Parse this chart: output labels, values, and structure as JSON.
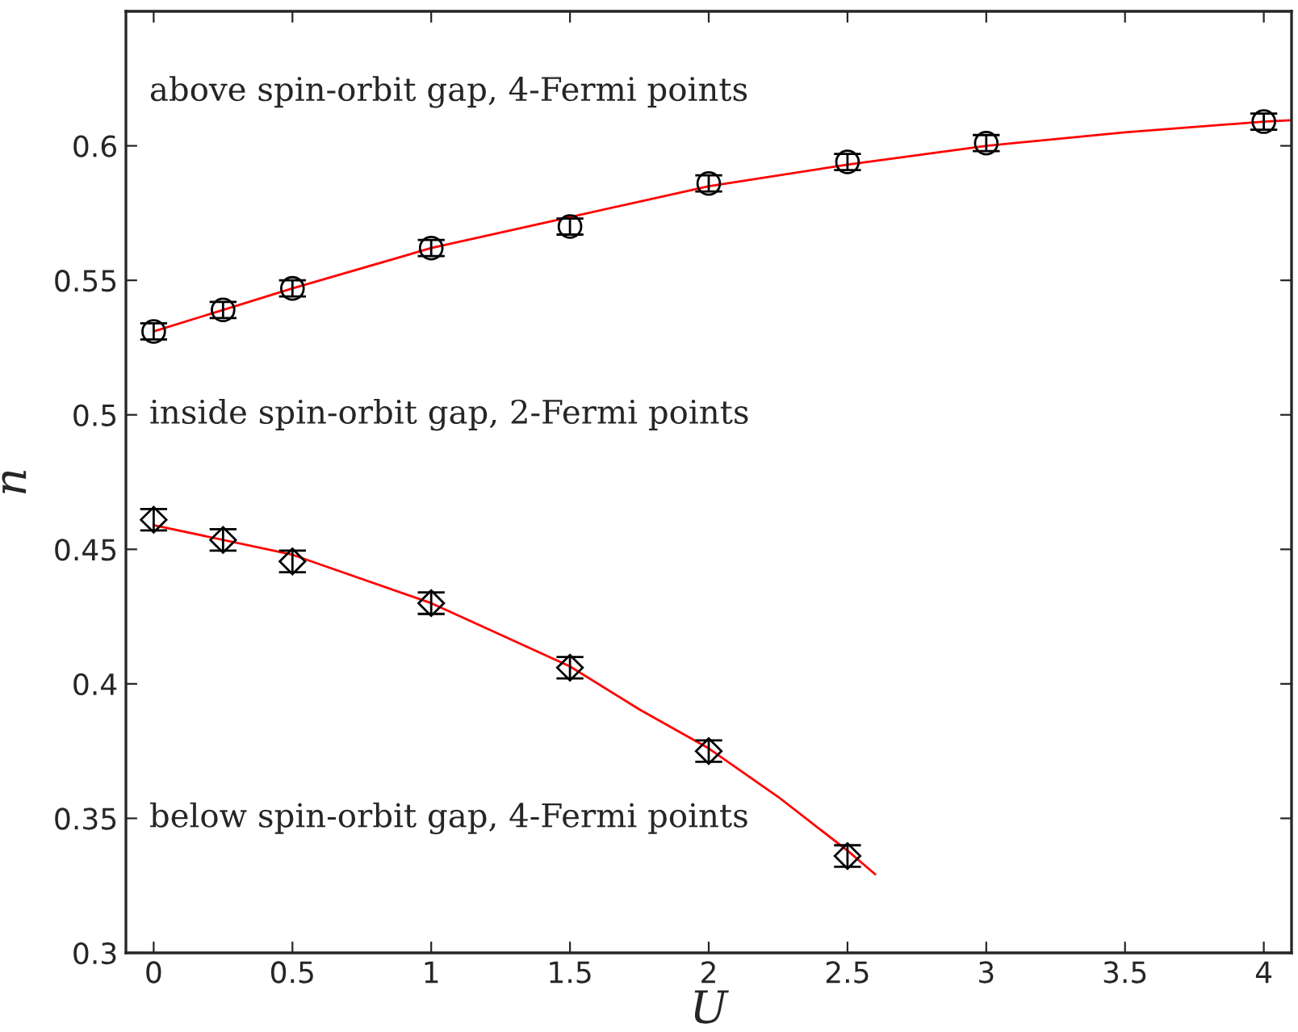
{
  "chart_data": {
    "type": "scatter",
    "xlabel": "U",
    "ylabel": "n",
    "xlim": [
      -0.1,
      4.1
    ],
    "xticks": [
      0,
      0.5,
      1,
      1.5,
      2,
      2.5,
      3,
      3.5,
      4
    ],
    "ylim": [
      0.3,
      0.65
    ],
    "yticks": [
      0.3,
      0.35,
      0.4,
      0.45,
      0.5,
      0.55,
      0.6
    ],
    "grid": false,
    "legend": false,
    "annotations": [
      "above spin-orbit gap, 4-Fermi points",
      "inside spin-orbit gap, 2-Fermi points",
      "below spin-orbit gap, 4-Fermi points"
    ],
    "series": [
      {
        "marker": "circle",
        "color": "#000000",
        "x": [
          0,
          0.25,
          0.5,
          1,
          1.5,
          2,
          2.5,
          3,
          4
        ],
        "values": [
          0.531,
          0.539,
          0.547,
          0.562,
          0.57,
          0.586,
          0.594,
          0.601,
          0.609
        ],
        "errors": [
          0.003,
          0.003,
          0.003,
          0.003,
          0.003,
          0.003,
          0.003,
          0.003,
          0.003
        ]
      },
      {
        "marker": "diamond",
        "color": "#000000",
        "x": [
          0,
          0.25,
          0.5,
          1,
          1.5,
          2,
          2.5
        ],
        "values": [
          0.461,
          0.4535,
          0.4455,
          0.43,
          0.406,
          0.375,
          0.336
        ],
        "errors": [
          0.004,
          0.004,
          0.004,
          0.004,
          0.004,
          0.004,
          0.004
        ]
      },
      {
        "type": "line",
        "marker": "none",
        "line_style": "solid",
        "color": "#ff0000",
        "x": [
          0,
          0.5,
          1,
          1.5,
          2,
          2.5,
          3,
          3.5,
          4,
          4.1
        ],
        "values": [
          0.531,
          0.547,
          0.562,
          0.5735,
          0.585,
          0.593,
          0.6,
          0.605,
          0.609,
          0.6095
        ]
      },
      {
        "type": "line",
        "marker": "none",
        "line_style": "solid",
        "color": "#ff0000",
        "x": [
          0,
          0.5,
          1,
          1.5,
          1.75,
          2,
          2.25,
          2.5,
          2.6
        ],
        "values": [
          0.459,
          0.448,
          0.43,
          0.4065,
          0.3905,
          0.376,
          0.358,
          0.338,
          0.3292
        ]
      }
    ]
  }
}
